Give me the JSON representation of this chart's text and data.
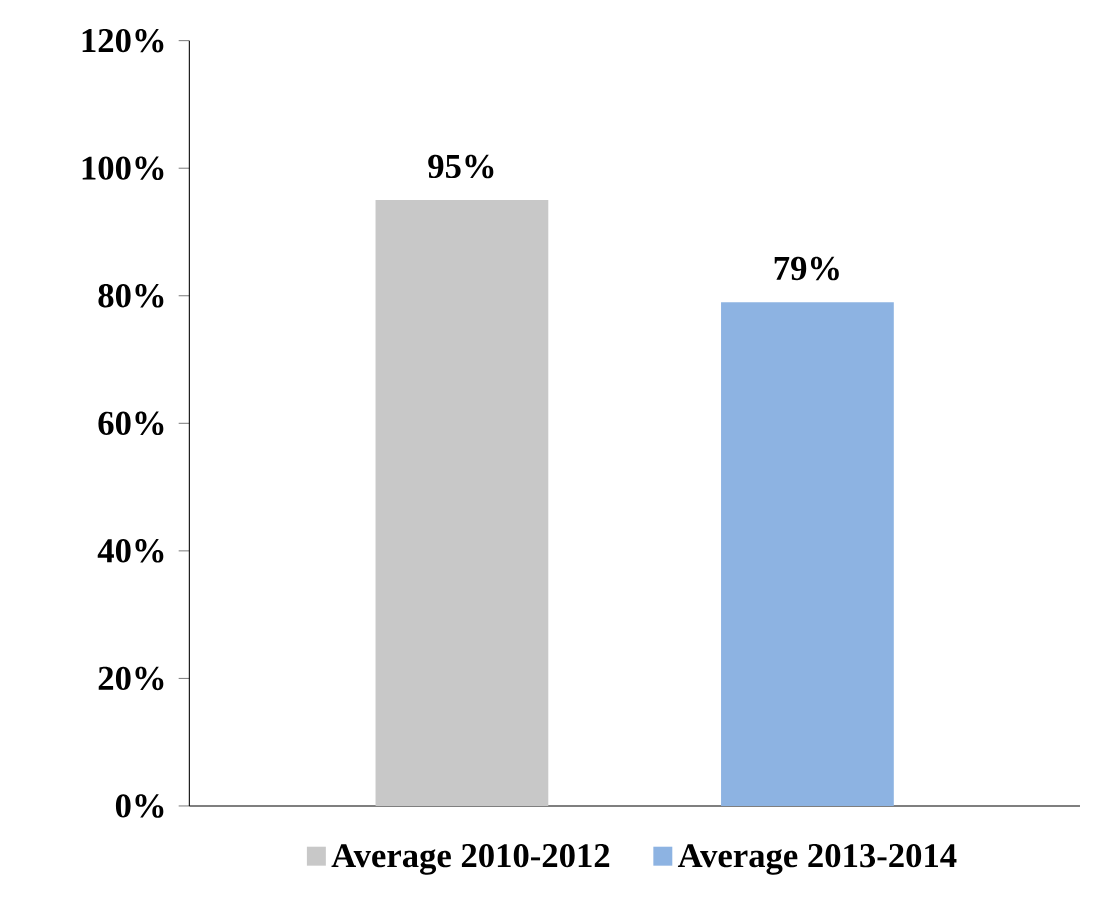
{
  "chart_data": {
    "type": "bar",
    "categories": [
      null
    ],
    "series": [
      {
        "name": "Average 2010-2012",
        "color": "#c8c8c8",
        "values": [
          95
        ],
        "value_labels": [
          "95%"
        ]
      },
      {
        "name": "Average 2013-2014",
        "color": "#8db3e2",
        "values": [
          79
        ],
        "value_labels": [
          "79%"
        ]
      }
    ],
    "ylim": [
      0,
      120
    ],
    "yticks": [
      {
        "value": 0,
        "label": "0%"
      },
      {
        "value": 20,
        "label": "20%"
      },
      {
        "value": 40,
        "label": "40%"
      },
      {
        "value": 60,
        "label": "60%"
      },
      {
        "value": 80,
        "label": "80%"
      },
      {
        "value": 100,
        "label": "100%"
      },
      {
        "value": 120,
        "label": "120%"
      }
    ],
    "grid": false,
    "legend": "bottom"
  }
}
